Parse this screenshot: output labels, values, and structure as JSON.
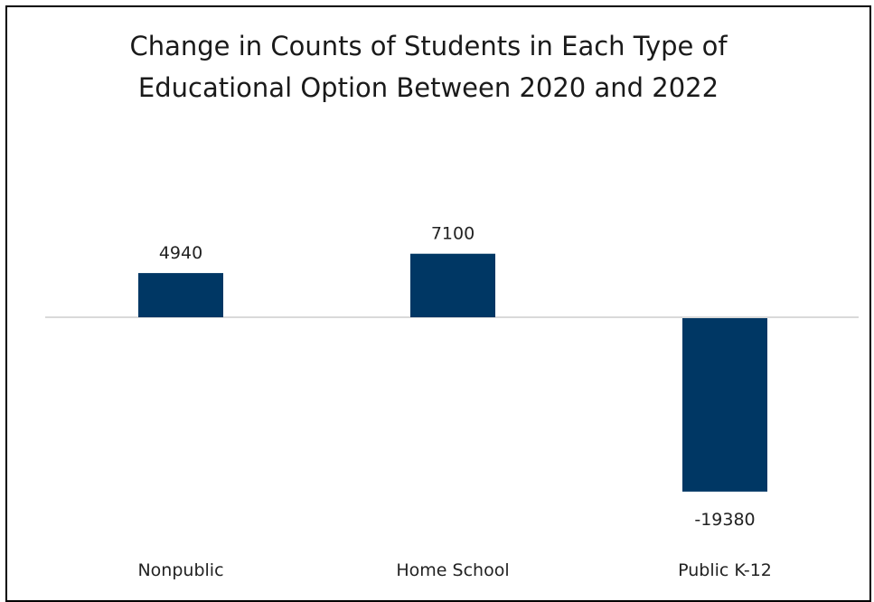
{
  "chart_data": {
    "type": "bar",
    "title_lines": [
      "Change in Counts of Students in Each Type of",
      "Educational Option Between 2020 and 2022"
    ],
    "categories": [
      "Nonpublic",
      "Home School",
      "Public K-12"
    ],
    "values": [
      4940,
      7100,
      -19380
    ],
    "data_labels": [
      "4940",
      "7100",
      "-19380"
    ],
    "xlabel": "",
    "ylabel": "",
    "grid": false,
    "legend": "none",
    "colors": {
      "bar": "#003764",
      "zero_line": "#d9d9d9"
    }
  }
}
